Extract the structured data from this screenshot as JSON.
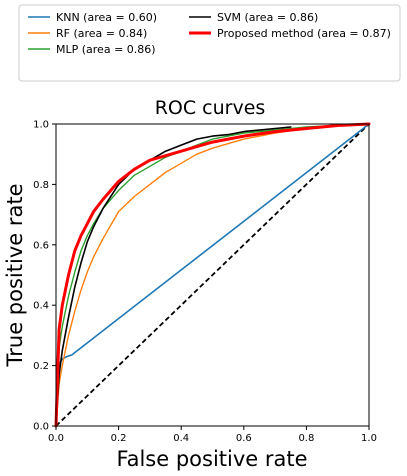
{
  "chart_data": {
    "type": "line",
    "title": "ROC curves",
    "xlabel": "False positive rate",
    "ylabel": "True positive rate",
    "xlim": [
      0.0,
      1.0
    ],
    "ylim": [
      0.0,
      1.0
    ],
    "xticks": [
      "0.0",
      "0.2",
      "0.4",
      "0.6",
      "0.8",
      "1.0"
    ],
    "yticks": [
      "0.0",
      "0.2",
      "0.4",
      "0.6",
      "0.8",
      "1.0"
    ],
    "grid": false,
    "legend_position": "top",
    "legend_columns": 2,
    "series": [
      {
        "name": "KNN (area = 0.60)",
        "color": "#1f77b4",
        "width": 1.6,
        "x": [
          0,
          0.005,
          0.01,
          0.02,
          0.035,
          0.05,
          1.0
        ],
        "y": [
          0,
          0.17,
          0.205,
          0.222,
          0.23,
          0.235,
          1.0
        ]
      },
      {
        "name": "RF (area = 0.84)",
        "color": "#ff7f0e",
        "width": 1.4,
        "x": [
          0,
          0.01,
          0.02,
          0.04,
          0.06,
          0.08,
          0.1,
          0.12,
          0.15,
          0.2,
          0.25,
          0.3,
          0.35,
          0.4,
          0.45,
          0.5,
          0.6,
          0.7,
          0.8,
          0.9,
          1.0
        ],
        "y": [
          0,
          0.14,
          0.2,
          0.3,
          0.38,
          0.45,
          0.51,
          0.56,
          0.62,
          0.71,
          0.76,
          0.8,
          0.84,
          0.87,
          0.9,
          0.92,
          0.95,
          0.97,
          0.985,
          0.995,
          1.0
        ]
      },
      {
        "name": "MLP (area = 0.86)",
        "color": "#2ca02c",
        "width": 1.4,
        "x": [
          0,
          0.01,
          0.02,
          0.04,
          0.06,
          0.08,
          0.1,
          0.12,
          0.15,
          0.2,
          0.25,
          0.3,
          0.35,
          0.4,
          0.45,
          0.5,
          0.6,
          0.7,
          0.8,
          0.9,
          1.0
        ],
        "y": [
          0,
          0.26,
          0.33,
          0.43,
          0.51,
          0.58,
          0.63,
          0.67,
          0.72,
          0.78,
          0.83,
          0.86,
          0.89,
          0.91,
          0.93,
          0.95,
          0.97,
          0.98,
          0.99,
          0.995,
          1.0
        ]
      },
      {
        "name": "SVM (area = 0.86)",
        "color": "#000000",
        "width": 1.6,
        "x": [
          0,
          0.01,
          0.02,
          0.04,
          0.06,
          0.08,
          0.1,
          0.12,
          0.15,
          0.2,
          0.25,
          0.3,
          0.35,
          0.4,
          0.45,
          0.5,
          0.55,
          0.6,
          0.7,
          0.75
        ],
        "y": [
          0,
          0.17,
          0.25,
          0.36,
          0.46,
          0.54,
          0.61,
          0.66,
          0.72,
          0.8,
          0.85,
          0.88,
          0.91,
          0.93,
          0.95,
          0.96,
          0.965,
          0.975,
          0.985,
          0.99
        ]
      },
      {
        "name": "Proposed method (area = 0.87)",
        "color": "#ff0000",
        "width": 3.0,
        "x": [
          0,
          0.01,
          0.02,
          0.04,
          0.06,
          0.08,
          0.1,
          0.12,
          0.15,
          0.2,
          0.25,
          0.3,
          0.35,
          0.4,
          0.45,
          0.5,
          0.6,
          0.7,
          0.8,
          0.9,
          1.0
        ],
        "y": [
          0,
          0.32,
          0.4,
          0.5,
          0.58,
          0.63,
          0.67,
          0.71,
          0.75,
          0.81,
          0.85,
          0.88,
          0.895,
          0.91,
          0.925,
          0.94,
          0.96,
          0.975,
          0.985,
          0.995,
          1.0
        ]
      }
    ],
    "reference_line": {
      "x": [
        0,
        1
      ],
      "y": [
        0,
        1
      ],
      "color": "#000000",
      "style": "dashed"
    }
  }
}
